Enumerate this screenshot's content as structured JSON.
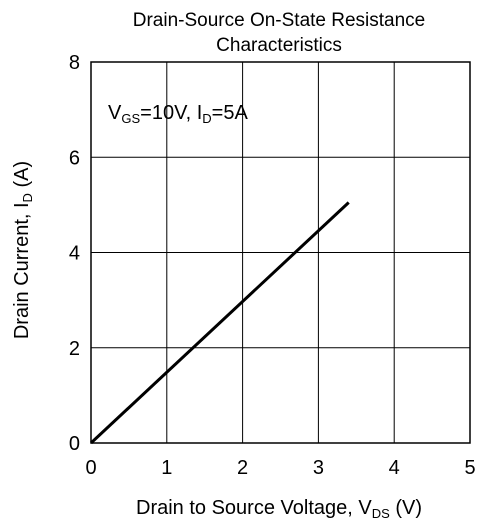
{
  "chart_data": {
    "type": "line",
    "title": [
      "Drain-Source On-State Resistance",
      "Characteristics"
    ],
    "xlabel": {
      "main": "Drain to Source Voltage, V",
      "sub": "DS",
      "unit": " (V)"
    },
    "ylabel": {
      "main": "Drain Current, I",
      "sub": "D",
      "unit": " (A)"
    },
    "annotation": {
      "v": "V",
      "v_sub": "GS",
      "v_val": "=10V, ",
      "i": "I",
      "i_sub": "D",
      "i_val": "=5A"
    },
    "xlim": [
      0,
      5
    ],
    "ylim": [
      0,
      8
    ],
    "xticks": [
      0,
      1,
      2,
      3,
      4,
      5
    ],
    "yticks": [
      0,
      2,
      4,
      6,
      8
    ],
    "grid": true,
    "series": [
      {
        "x": [
          0,
          3.4
        ],
        "y": [
          0,
          5.05
        ],
        "color": "#000000"
      }
    ]
  }
}
